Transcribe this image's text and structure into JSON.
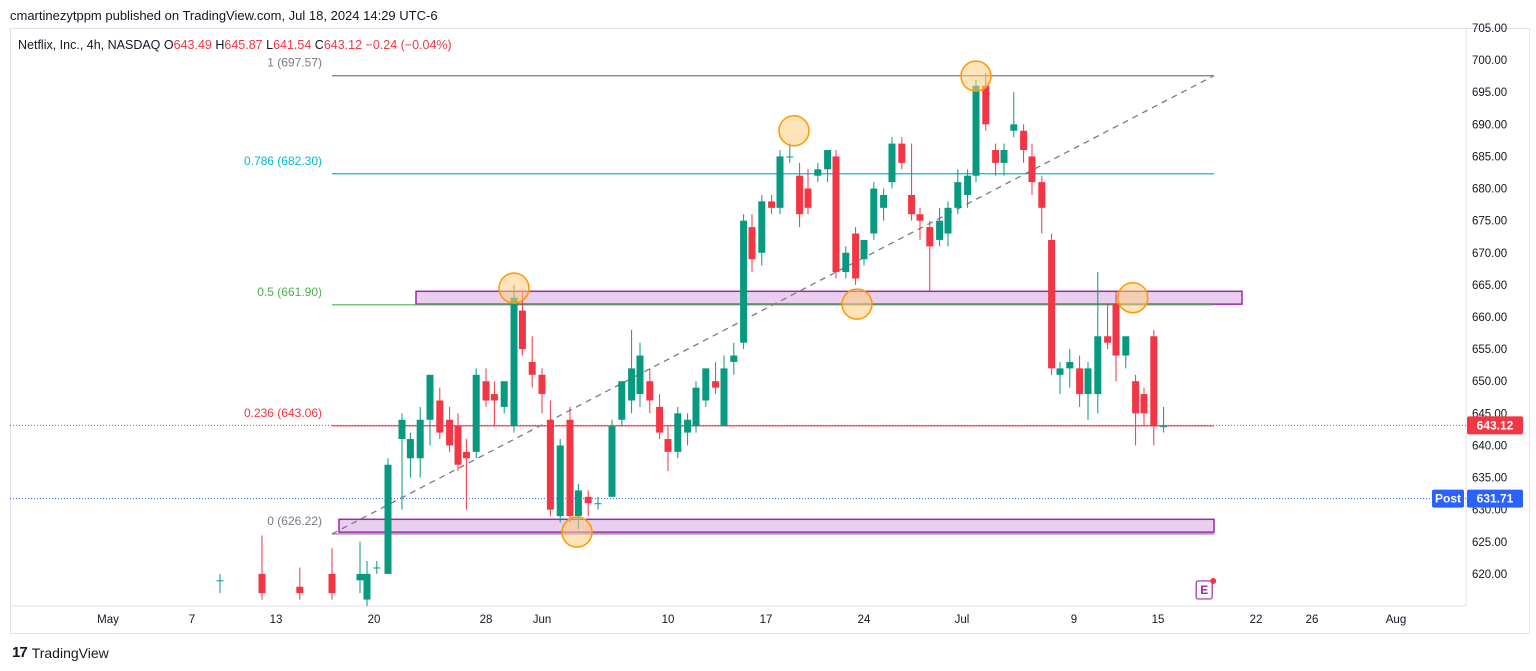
{
  "header": {
    "published": "cmartinezytppm published on TradingView.com, Jul 18, 2024 14:29 UTC-6"
  },
  "legend": {
    "symbol": "Netflix, Inc., 4h, NASDAQ",
    "o_label": "O",
    "o_value": "643.49",
    "h_label": "H",
    "h_value": "645.87",
    "l_label": "L",
    "l_value": "641.54",
    "c_label": "C",
    "c_value": "643.12",
    "change": "−0.24 (−0.04%)"
  },
  "footer": {
    "brand": "TradingView",
    "logo": "17"
  },
  "colors": {
    "up": "#089981",
    "down": "#f23645",
    "fib1": "#787b86",
    "fib786": "#00bcd4",
    "fib05": "#4caf50",
    "fib236": "#f23645",
    "zone": "#e1bee7",
    "zoneStroke": "#9c27b0",
    "circle": "#ffcc80",
    "circleStroke": "#ff9800",
    "post": "#2962ff"
  },
  "chart_data": {
    "type": "candlestick",
    "y_axis": {
      "min": 615,
      "max": 705,
      "ticks": [
        "705.00",
        "700.00",
        "695.00",
        "690.00",
        "685.00",
        "680.00",
        "675.00",
        "670.00",
        "665.00",
        "660.00",
        "655.00",
        "650.00",
        "645.00",
        "640.00",
        "635.00",
        "630.00",
        "625.00",
        "620.00"
      ]
    },
    "x_axis": {
      "ticks": [
        {
          "label": "May",
          "x": 0.0
        },
        {
          "label": "7",
          "x": 6.0
        },
        {
          "label": "13",
          "x": 12.0
        },
        {
          "label": "20",
          "x": 19.0
        },
        {
          "label": "28",
          "x": 27.0
        },
        {
          "label": "Jun",
          "x": 31.0
        },
        {
          "label": "10",
          "x": 40.0
        },
        {
          "label": "17",
          "x": 47.0
        },
        {
          "label": "24",
          "x": 54.0
        },
        {
          "label": "Jul",
          "x": 61.0
        },
        {
          "label": "9",
          "x": 69.0
        },
        {
          "label": "15",
          "x": 75.0
        },
        {
          "label": "22",
          "x": 82.0
        },
        {
          "label": "26",
          "x": 86.0
        },
        {
          "label": "Aug",
          "x": 92.0
        }
      ],
      "min": -7,
      "max": 97
    },
    "candles": [
      {
        "x": 8.0,
        "o": 619,
        "h": 620,
        "l": 617,
        "c": 619
      },
      {
        "x": 11.0,
        "o": 620,
        "h": 626,
        "l": 616,
        "c": 617
      },
      {
        "x": 13.7,
        "o": 618,
        "h": 621,
        "l": 616,
        "c": 617
      },
      {
        "x": 16.0,
        "o": 620,
        "h": 624,
        "l": 616,
        "c": 617
      },
      {
        "x": 18.0,
        "o": 619,
        "h": 625,
        "l": 617,
        "c": 620
      },
      {
        "x": 18.5,
        "o": 616,
        "h": 622,
        "l": 615,
        "c": 620
      },
      {
        "x": 19.2,
        "o": 621,
        "h": 622,
        "l": 620,
        "c": 621
      },
      {
        "x": 20.0,
        "o": 620,
        "h": 638,
        "l": 620,
        "c": 637
      },
      {
        "x": 21.0,
        "o": 641,
        "h": 645,
        "l": 630,
        "c": 644
      },
      {
        "x": 21.6,
        "o": 638,
        "h": 642,
        "l": 635,
        "c": 641
      },
      {
        "x": 22.3,
        "o": 638,
        "h": 646,
        "l": 635,
        "c": 644
      },
      {
        "x": 23.0,
        "o": 644,
        "h": 651,
        "l": 640,
        "c": 651
      },
      {
        "x": 23.7,
        "o": 647,
        "h": 649,
        "l": 641,
        "c": 642
      },
      {
        "x": 24.4,
        "o": 644,
        "h": 646,
        "l": 639,
        "c": 640
      },
      {
        "x": 25.0,
        "o": 643,
        "h": 645,
        "l": 636,
        "c": 637
      },
      {
        "x": 25.6,
        "o": 639,
        "h": 641,
        "l": 630,
        "c": 638
      },
      {
        "x": 26.3,
        "o": 639,
        "h": 652,
        "l": 638,
        "c": 651
      },
      {
        "x": 27.0,
        "o": 650,
        "h": 652,
        "l": 646,
        "c": 647
      },
      {
        "x": 27.6,
        "o": 648,
        "h": 650,
        "l": 643,
        "c": 647
      },
      {
        "x": 28.3,
        "o": 646,
        "h": 650,
        "l": 645,
        "c": 650
      },
      {
        "x": 29.0,
        "o": 643,
        "h": 665,
        "l": 642,
        "c": 663
      },
      {
        "x": 29.6,
        "o": 661,
        "h": 664,
        "l": 654,
        "c": 655
      },
      {
        "x": 30.3,
        "o": 653,
        "h": 657,
        "l": 649,
        "c": 651
      },
      {
        "x": 31.0,
        "o": 651,
        "h": 652,
        "l": 645,
        "c": 648
      },
      {
        "x": 31.6,
        "o": 644,
        "h": 647,
        "l": 629,
        "c": 630
      },
      {
        "x": 32.3,
        "o": 629,
        "h": 641,
        "l": 628,
        "c": 640
      },
      {
        "x": 33.0,
        "o": 644,
        "h": 646,
        "l": 628,
        "c": 629
      },
      {
        "x": 33.6,
        "o": 629,
        "h": 634,
        "l": 627,
        "c": 633
      },
      {
        "x": 34.3,
        "o": 632,
        "h": 633,
        "l": 629,
        "c": 631
      },
      {
        "x": 35.0,
        "o": 631,
        "h": 632,
        "l": 630,
        "c": 631
      },
      {
        "x": 36.0,
        "o": 632,
        "h": 644,
        "l": 632,
        "c": 643
      },
      {
        "x": 36.7,
        "o": 644,
        "h": 650,
        "l": 643,
        "c": 650
      },
      {
        "x": 37.4,
        "o": 647,
        "h": 658,
        "l": 645,
        "c": 652
      },
      {
        "x": 38.0,
        "o": 648,
        "h": 656,
        "l": 646,
        "c": 654
      },
      {
        "x": 38.7,
        "o": 650,
        "h": 652,
        "l": 645,
        "c": 647
      },
      {
        "x": 39.4,
        "o": 646,
        "h": 648,
        "l": 641,
        "c": 642
      },
      {
        "x": 40.0,
        "o": 641,
        "h": 643,
        "l": 636,
        "c": 639
      },
      {
        "x": 40.7,
        "o": 639,
        "h": 646,
        "l": 638,
        "c": 645
      },
      {
        "x": 41.4,
        "o": 642,
        "h": 645,
        "l": 640,
        "c": 644
      },
      {
        "x": 42.0,
        "o": 643,
        "h": 650,
        "l": 642,
        "c": 649
      },
      {
        "x": 42.7,
        "o": 647,
        "h": 652,
        "l": 646,
        "c": 652
      },
      {
        "x": 43.4,
        "o": 650,
        "h": 653,
        "l": 648,
        "c": 649
      },
      {
        "x": 44.0,
        "o": 643,
        "h": 654,
        "l": 643,
        "c": 652
      },
      {
        "x": 44.7,
        "o": 653,
        "h": 656,
        "l": 651,
        "c": 654
      },
      {
        "x": 45.4,
        "o": 656,
        "h": 676,
        "l": 655,
        "c": 675
      },
      {
        "x": 46.0,
        "o": 674,
        "h": 676,
        "l": 667,
        "c": 669
      },
      {
        "x": 46.7,
        "o": 670,
        "h": 679,
        "l": 668,
        "c": 678
      },
      {
        "x": 47.4,
        "o": 678,
        "h": 679,
        "l": 676,
        "c": 677
      },
      {
        "x": 48.0,
        "o": 677,
        "h": 686,
        "l": 676,
        "c": 685
      },
      {
        "x": 48.7,
        "o": 685,
        "h": 687,
        "l": 684,
        "c": 685
      },
      {
        "x": 49.4,
        "o": 682,
        "h": 684,
        "l": 674,
        "c": 676
      },
      {
        "x": 50.0,
        "o": 680,
        "h": 683,
        "l": 676,
        "c": 677
      },
      {
        "x": 50.7,
        "o": 682,
        "h": 684,
        "l": 681,
        "c": 683
      },
      {
        "x": 51.4,
        "o": 683,
        "h": 686,
        "l": 681,
        "c": 686
      },
      {
        "x": 52.0,
        "o": 685,
        "h": 686,
        "l": 666,
        "c": 667
      },
      {
        "x": 52.7,
        "o": 667,
        "h": 671,
        "l": 666,
        "c": 670
      },
      {
        "x": 53.4,
        "o": 673,
        "h": 674,
        "l": 665,
        "c": 666
      },
      {
        "x": 54.0,
        "o": 669,
        "h": 672,
        "l": 668,
        "c": 672
      },
      {
        "x": 54.7,
        "o": 673,
        "h": 681,
        "l": 672,
        "c": 680
      },
      {
        "x": 55.4,
        "o": 677,
        "h": 680,
        "l": 675,
        "c": 679
      },
      {
        "x": 56.0,
        "o": 681,
        "h": 688,
        "l": 680,
        "c": 687
      },
      {
        "x": 56.7,
        "o": 687,
        "h": 688,
        "l": 683,
        "c": 684
      },
      {
        "x": 57.4,
        "o": 679,
        "h": 687,
        "l": 675,
        "c": 676
      },
      {
        "x": 58.0,
        "o": 676,
        "h": 677,
        "l": 672,
        "c": 675
      },
      {
        "x": 58.7,
        "o": 674,
        "h": 675,
        "l": 664,
        "c": 671
      },
      {
        "x": 59.4,
        "o": 672,
        "h": 677,
        "l": 671,
        "c": 675
      },
      {
        "x": 60.0,
        "o": 673,
        "h": 678,
        "l": 671,
        "c": 677
      },
      {
        "x": 60.7,
        "o": 677,
        "h": 683,
        "l": 676,
        "c": 681
      },
      {
        "x": 61.4,
        "o": 679,
        "h": 683,
        "l": 677,
        "c": 682
      },
      {
        "x": 62.0,
        "o": 682,
        "h": 697,
        "l": 681,
        "c": 696
      },
      {
        "x": 62.7,
        "o": 696,
        "h": 698,
        "l": 689,
        "c": 690
      },
      {
        "x": 63.4,
        "o": 686,
        "h": 687,
        "l": 682,
        "c": 684
      },
      {
        "x": 64.0,
        "o": 684,
        "h": 687,
        "l": 682,
        "c": 686
      },
      {
        "x": 64.7,
        "o": 689,
        "h": 695,
        "l": 688,
        "c": 690
      },
      {
        "x": 65.4,
        "o": 689,
        "h": 690,
        "l": 684,
        "c": 686
      },
      {
        "x": 66.0,
        "o": 685,
        "h": 687,
        "l": 679,
        "c": 681
      },
      {
        "x": 66.7,
        "o": 681,
        "h": 682,
        "l": 673,
        "c": 677
      },
      {
        "x": 67.4,
        "o": 672,
        "h": 673,
        "l": 651,
        "c": 652
      },
      {
        "x": 68.0,
        "o": 651,
        "h": 653,
        "l": 648,
        "c": 652
      },
      {
        "x": 68.7,
        "o": 652,
        "h": 655,
        "l": 649,
        "c": 653
      },
      {
        "x": 69.4,
        "o": 652,
        "h": 654,
        "l": 646,
        "c": 648
      },
      {
        "x": 70.0,
        "o": 648,
        "h": 653,
        "l": 644,
        "c": 652
      },
      {
        "x": 70.7,
        "o": 648,
        "h": 667,
        "l": 645,
        "c": 657
      },
      {
        "x": 71.4,
        "o": 657,
        "h": 662,
        "l": 655,
        "c": 656
      },
      {
        "x": 72.0,
        "o": 662,
        "h": 664,
        "l": 650,
        "c": 654
      },
      {
        "x": 72.7,
        "o": 654,
        "h": 657,
        "l": 652,
        "c": 657
      },
      {
        "x": 73.4,
        "o": 650,
        "h": 651,
        "l": 640,
        "c": 645
      },
      {
        "x": 74.0,
        "o": 648,
        "h": 649,
        "l": 643,
        "c": 645
      },
      {
        "x": 74.7,
        "o": 657,
        "h": 658,
        "l": 640,
        "c": 643
      },
      {
        "x": 75.4,
        "o": 643,
        "h": 646,
        "l": 642,
        "c": 643
      }
    ],
    "fib_levels": [
      {
        "label": "1 (697.57)",
        "value": 697.57,
        "color": "#787b86"
      },
      {
        "label": "0.786 (682.30)",
        "value": 682.3,
        "color": "#00bcd4"
      },
      {
        "label": "0.5 (661.90)",
        "value": 661.9,
        "color": "#4caf50"
      },
      {
        "label": "0.236 (643.06)",
        "value": 643.06,
        "color": "#f23645"
      },
      {
        "label": "0 (626.22)",
        "value": 626.22,
        "color": "#787b86"
      }
    ],
    "zones": [
      {
        "x1": 22.0,
        "x2": 81.0,
        "y1": 662,
        "y2": 664
      },
      {
        "x1": 16.5,
        "x2": 79.0,
        "y1": 626.5,
        "y2": 628.5
      }
    ],
    "circles": [
      {
        "x": 29.0,
        "y": 664.5
      },
      {
        "x": 33.5,
        "y": 626.5
      },
      {
        "x": 49.0,
        "y": 689
      },
      {
        "x": 53.5,
        "y": 662
      },
      {
        "x": 62.0,
        "y": 697.5
      },
      {
        "x": 73.2,
        "y": 663
      }
    ],
    "trend_line": {
      "x1": 16.0,
      "y1": 626.22,
      "x2": 79.0,
      "y2": 697.57
    },
    "price_tags": [
      {
        "label": "",
        "value": "643.12",
        "price": 643.12,
        "color": "#f23645"
      },
      {
        "label": "Post",
        "value": "631.71",
        "price": 631.71,
        "color": "#2962ff"
      }
    ]
  }
}
